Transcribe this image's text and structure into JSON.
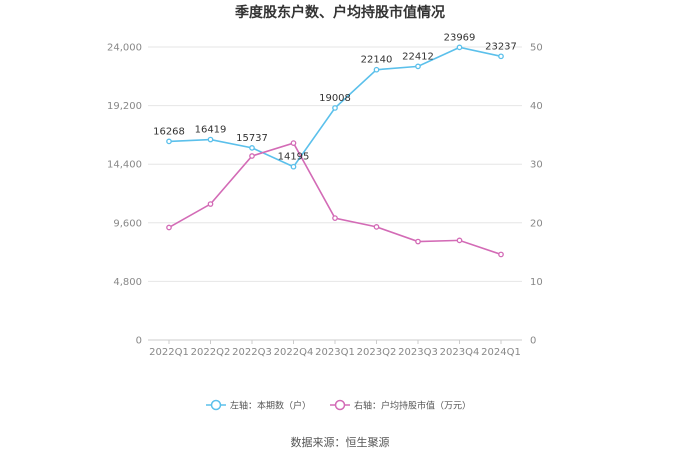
{
  "chart_data": {
    "type": "line",
    "title": "季度股东户数、户均持股市值情况",
    "categories": [
      "2022Q1",
      "2022Q2",
      "2022Q3",
      "2022Q4",
      "2023Q1",
      "2023Q2",
      "2023Q3",
      "2023Q4",
      "2024Q1"
    ],
    "left_axis": {
      "ylim": [
        0,
        24000
      ],
      "ticks": [
        "0",
        "4,800",
        "9,600",
        "14,400",
        "19,200",
        "24,000"
      ],
      "tick_values": [
        0,
        4800,
        9600,
        14400,
        19200,
        24000
      ]
    },
    "right_axis": {
      "ylim": [
        0,
        50
      ],
      "ticks": [
        "0",
        "10",
        "20",
        "30",
        "40",
        "50"
      ],
      "tick_values": [
        0,
        10,
        20,
        30,
        40,
        50
      ]
    },
    "series": [
      {
        "name": "左轴：本期数（户）",
        "axis": "left",
        "color": "#5bc0eb",
        "values": [
          16268,
          16419,
          15737,
          14195,
          19008,
          22140,
          22412,
          23969,
          23237
        ],
        "labels": [
          "16268",
          "16419",
          "15737",
          "14195",
          "19008",
          "22140",
          "22412",
          "23969",
          "23237"
        ]
      },
      {
        "name": "右轴：户均持股市值（万元）",
        "axis": "right",
        "color": "#d36bb6",
        "values": [
          19.2,
          23.2,
          31.4,
          33.6,
          20.8,
          19.3,
          16.8,
          17.0,
          14.6
        ]
      }
    ],
    "grid": true,
    "legend": "bottom-center"
  },
  "source": "数据来源：恒生聚源"
}
